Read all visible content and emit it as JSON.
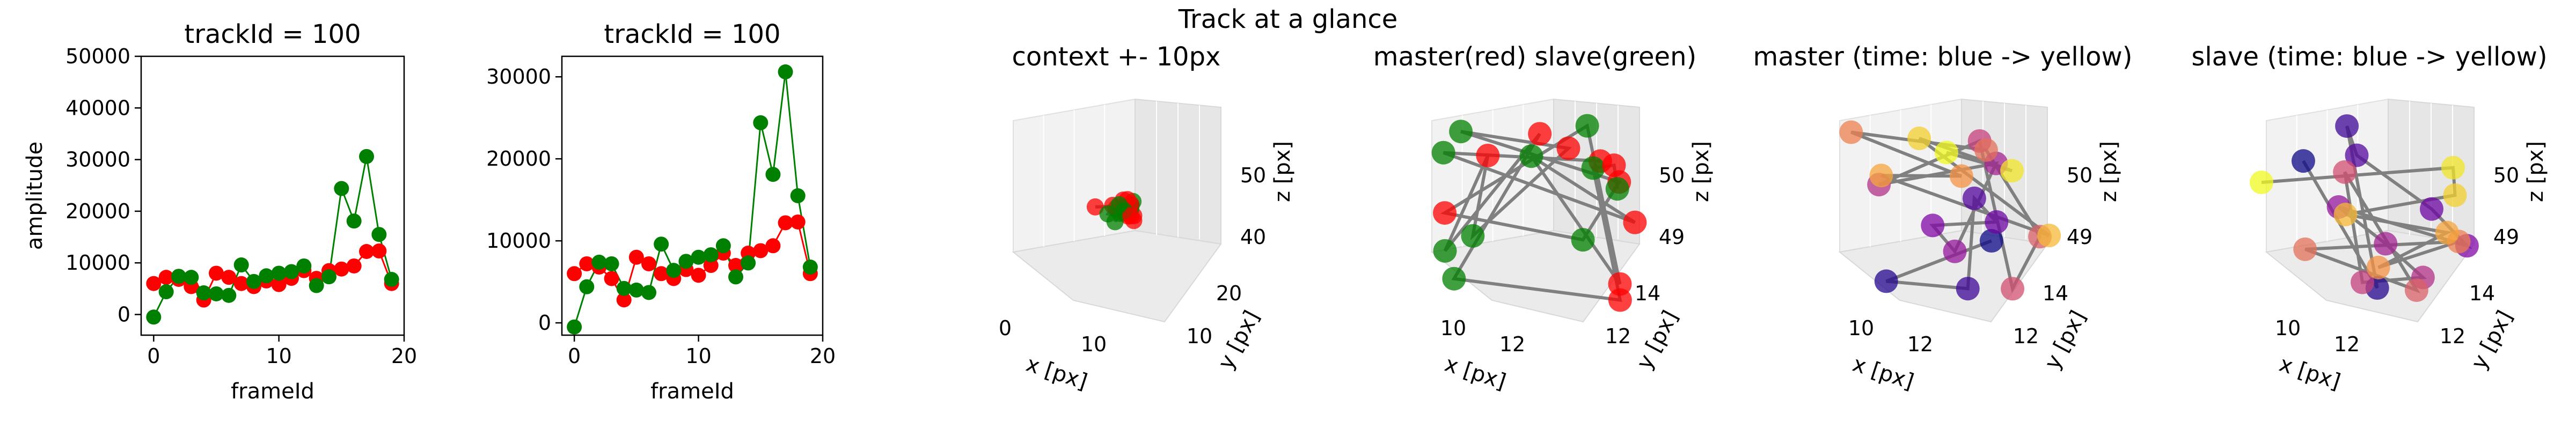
{
  "figure": {
    "suptitle": "Track at a glance"
  },
  "chart_data": [
    {
      "type": "line",
      "title": "trackId = 100",
      "xlabel": "frameId",
      "ylabel": "amplitude",
      "xlim": [
        -1,
        20
      ],
      "ylim": [
        -4000,
        50000
      ],
      "xticks": [
        0,
        10,
        20
      ],
      "yticks": [
        0,
        10000,
        20000,
        30000,
        40000,
        50000
      ],
      "x": [
        0,
        1,
        2,
        3,
        4,
        5,
        6,
        7,
        8,
        9,
        10,
        11,
        12,
        13,
        14,
        15,
        16,
        17,
        18,
        19
      ],
      "series": [
        {
          "color": "#ff0000",
          "values": [
            6000,
            7200,
            6800,
            5400,
            2800,
            8000,
            7200,
            6000,
            5400,
            6500,
            5800,
            7000,
            8500,
            7000,
            8500,
            8800,
            9400,
            12200,
            12300,
            6000
          ]
        },
        {
          "color": "#008000",
          "values": [
            -500,
            4400,
            7400,
            7200,
            4200,
            4000,
            3700,
            9600,
            6400,
            7500,
            8000,
            8300,
            9400,
            5600,
            7300,
            24400,
            18100,
            30600,
            15500,
            6800
          ]
        }
      ]
    },
    {
      "type": "line",
      "title": "trackId = 100",
      "xlabel": "frameId",
      "ylabel": "",
      "xlim": [
        -1,
        20
      ],
      "ylim": [
        -1500,
        32500
      ],
      "xticks": [
        0,
        10,
        20
      ],
      "yticks": [
        0,
        10000,
        20000,
        30000
      ],
      "x": [
        0,
        1,
        2,
        3,
        4,
        5,
        6,
        7,
        8,
        9,
        10,
        11,
        12,
        13,
        14,
        15,
        16,
        17,
        18,
        19
      ],
      "series": [
        {
          "color": "#ff0000",
          "values": [
            6000,
            7200,
            6800,
            5400,
            2800,
            8000,
            7200,
            6000,
            5400,
            6500,
            5800,
            7000,
            8500,
            7000,
            8500,
            8800,
            9400,
            12200,
            12300,
            6000
          ]
        },
        {
          "color": "#008000",
          "values": [
            -500,
            4400,
            7400,
            7200,
            4200,
            4000,
            3700,
            9600,
            6400,
            7500,
            8000,
            8300,
            9400,
            5600,
            7300,
            24400,
            18100,
            30600,
            15500,
            6800
          ]
        }
      ]
    },
    {
      "type": "scatter3d",
      "title": "context +- 10px",
      "xlabel": "x [px]",
      "ylabel": "y [px]",
      "zlabel": "z [px]",
      "xticks": [
        0,
        10
      ],
      "yticks": [
        10,
        20
      ],
      "zticks": [
        40,
        50
      ],
      "coloring": "red/green"
    },
    {
      "type": "scatter3d",
      "title": "master(red) slave(green)",
      "xlabel": "x [px]",
      "ylabel": "y [px]",
      "zlabel": "z [px]",
      "xticks": [
        10,
        12
      ],
      "yticks": [
        12,
        14
      ],
      "zticks": [
        49,
        50
      ],
      "coloring": "red/green"
    },
    {
      "type": "scatter3d",
      "title": "master (time: blue -> yellow)",
      "xlabel": "x [px]",
      "ylabel": "y [px]",
      "zlabel": "z [px]",
      "xticks": [
        10,
        12
      ],
      "yticks": [
        12,
        14
      ],
      "zticks": [
        49,
        50
      ],
      "coloring": "plasma"
    },
    {
      "type": "scatter3d",
      "title": "slave (time: blue -> yellow)",
      "xlabel": "x [px]",
      "ylabel": "y [px]",
      "zlabel": "z [px]",
      "xticks": [
        10,
        12
      ],
      "yticks": [
        12,
        14
      ],
      "zticks": [
        49,
        50
      ],
      "coloring": "plasma"
    }
  ]
}
